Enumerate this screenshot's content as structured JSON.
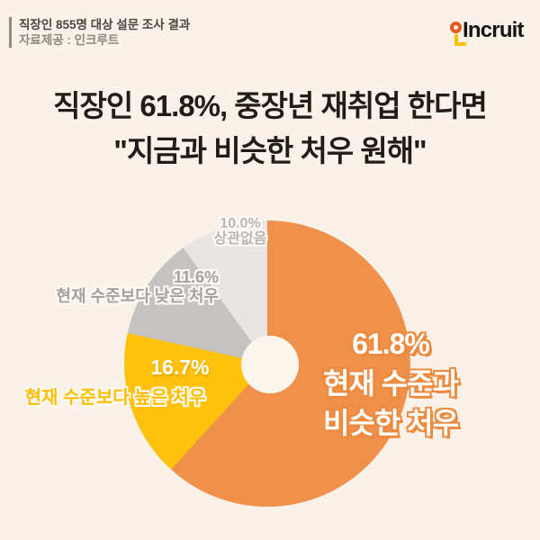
{
  "page": {
    "background": "#FAF1E9",
    "donut_hole_color": "#FCF6EE"
  },
  "header": {
    "line1": "직장인 855명 대상 설문 조사 결과",
    "line2": "자료제공 : 인크루트"
  },
  "logo": {
    "text": "Incruit",
    "ring_color": "#E8571F",
    "l_color": "#FFC107",
    "text_color": "#141414"
  },
  "title": {
    "line1": "직장인 61.8%, 중장년 재취업 한다면",
    "line2": "\"지금과 비슷한 처우 원해\""
  },
  "chart_data": {
    "type": "pie",
    "title": "중장년 재취업 시 희망 처우 (직장인 855명 설문)",
    "donut": true,
    "start_angle_deg": 0,
    "direction": "clockwise",
    "segments": [
      {
        "label": "현재 수준과 비슷한 처우",
        "value": 61.8,
        "color": "#F0914B"
      },
      {
        "label": "현재 수준보다 높은 처우",
        "value": 16.7,
        "color": "#FEC20D"
      },
      {
        "label": "현재 수준보다 낮은 처우",
        "value": 11.6,
        "color": "#C5C3C1"
      },
      {
        "label": "상관없음",
        "value": 10.0,
        "color": "#E8E6E3"
      }
    ]
  },
  "labels": {
    "similar": {
      "pct": "61.8%",
      "line1": "현재 수준과",
      "line2": "비슷한 처우"
    },
    "higher": {
      "pct": "16.7%",
      "text": "현재 수준보다 높은 처우"
    },
    "lower": {
      "pct": "11.6%",
      "text": "현재 수준보다 낮은 처우"
    },
    "any": {
      "pct": "10.0%",
      "text": "상관없음"
    }
  }
}
